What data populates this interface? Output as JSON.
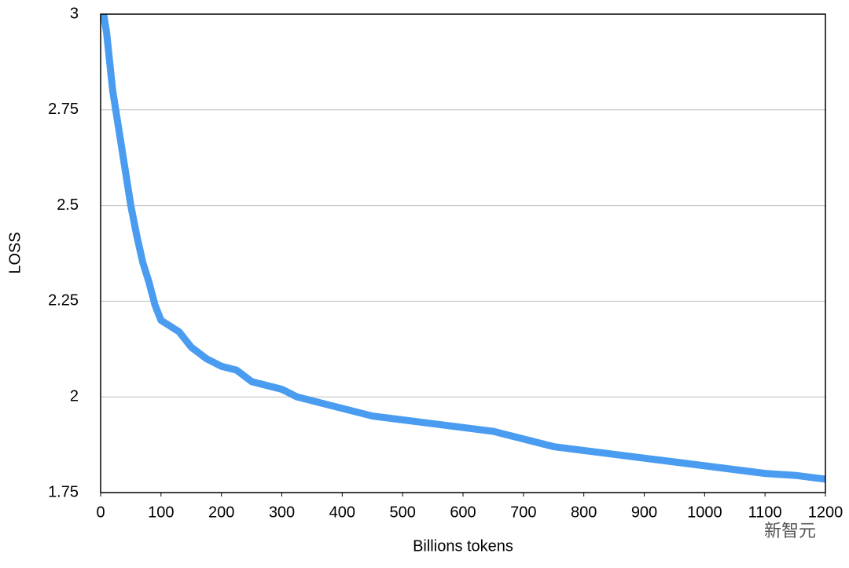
{
  "chart_data": {
    "type": "line",
    "x_label": "Billions tokens",
    "y_label": "LOSS",
    "watermark": "新智元",
    "x": [
      5,
      10,
      20,
      30,
      40,
      50,
      60,
      70,
      80,
      90,
      100,
      110,
      120,
      130,
      150,
      175,
      200,
      225,
      250,
      275,
      300,
      325,
      350,
      400,
      450,
      500,
      550,
      600,
      650,
      700,
      750,
      800,
      850,
      900,
      950,
      1000,
      1050,
      1100,
      1150,
      1200
    ],
    "series": [
      {
        "color": "#4a9cf0",
        "values": [
          3.0,
          2.95,
          2.8,
          2.7,
          2.6,
          2.5,
          2.42,
          2.35,
          2.3,
          2.24,
          2.2,
          2.19,
          2.18,
          2.17,
          2.13,
          2.1,
          2.08,
          2.07,
          2.04,
          2.03,
          2.02,
          2.0,
          1.99,
          1.97,
          1.95,
          1.94,
          1.93,
          1.92,
          1.91,
          1.89,
          1.87,
          1.86,
          1.85,
          1.84,
          1.83,
          1.82,
          1.81,
          1.8,
          1.795,
          1.785
        ]
      }
    ],
    "xlim": [
      0,
      1200
    ],
    "xticks": [
      0,
      100,
      200,
      300,
      400,
      500,
      600,
      700,
      800,
      900,
      1000,
      1100,
      1200
    ],
    "ylim": [
      1.75,
      3
    ],
    "yticks": [
      1.75,
      2,
      2.25,
      2.5,
      2.75,
      3
    ],
    "grid": true
  }
}
